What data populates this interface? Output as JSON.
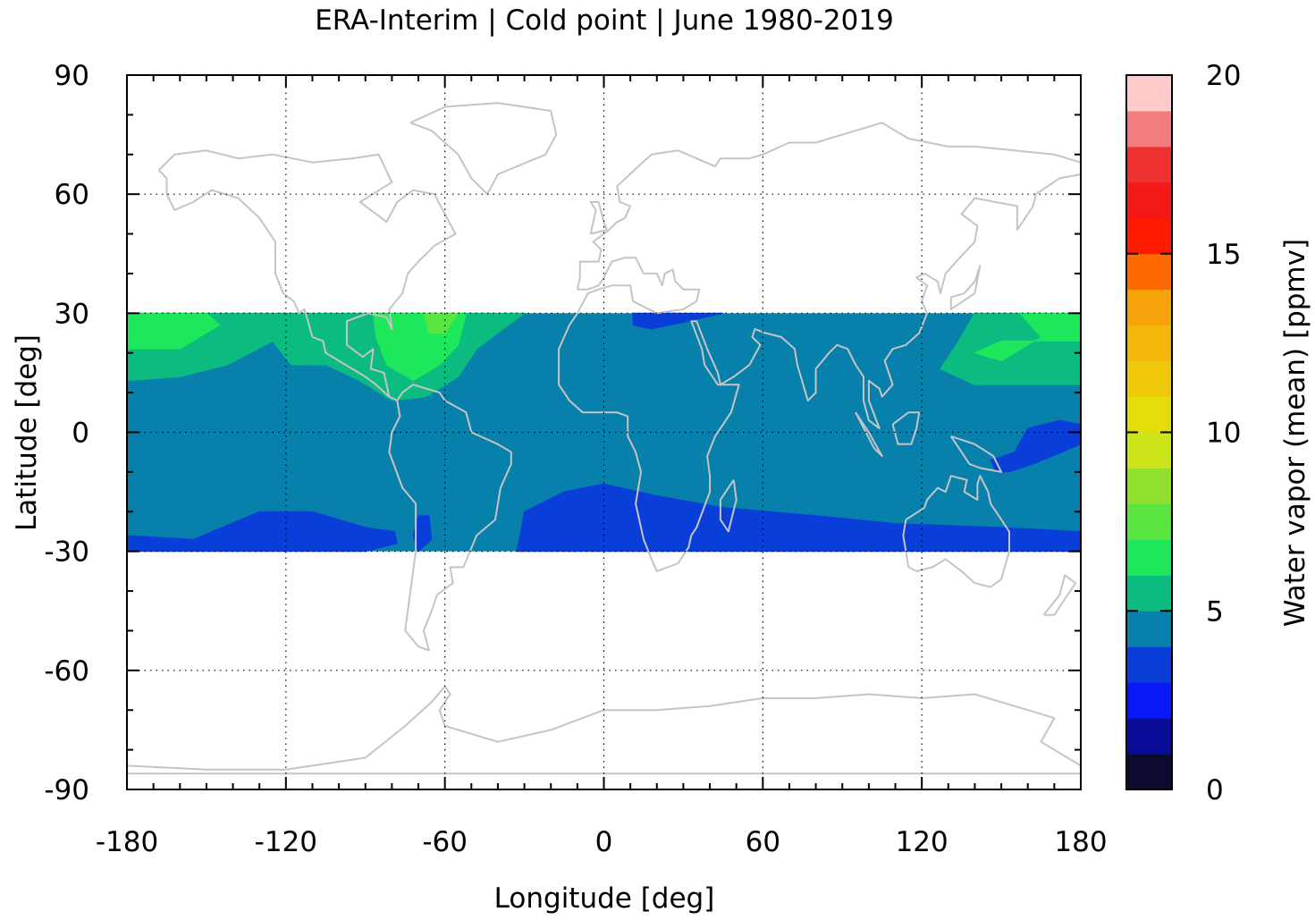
{
  "chart_data": {
    "type": "heatmap",
    "title": "ERA-Interim | Cold point | June 1980-2019",
    "xlabel": "Longitude [deg]",
    "ylabel": "Latitude [deg]",
    "xlim": [
      -180,
      180
    ],
    "ylim": [
      -90,
      90
    ],
    "x_ticks": [
      -180,
      -120,
      -60,
      0,
      60,
      120,
      180
    ],
    "y_ticks": [
      90,
      60,
      30,
      0,
      -30,
      -60,
      -90
    ],
    "x_tick_labels": [
      "-180",
      "-120",
      "-60",
      "0",
      "60",
      "120",
      "180"
    ],
    "y_tick_labels": [
      "90",
      "60",
      "30",
      "0",
      "-30",
      "-60",
      "-90"
    ],
    "grid": "dotted at major ticks",
    "data_lat_range": [
      -30,
      30
    ],
    "colorbar": {
      "label": "Water vapor (mean) [ppmv]",
      "range": [
        0,
        20
      ],
      "step": 1,
      "ticks": [
        0,
        5,
        10,
        15,
        20
      ],
      "tick_labels": [
        "0",
        "5",
        "10",
        "15",
        "20"
      ],
      "colors": [
        "#0b0c30",
        "#0a0c9a",
        "#0818f6",
        "#0a3ed8",
        "#0880ac",
        "#0cbb80",
        "#1de85c",
        "#5ae440",
        "#92e02e",
        "#cce41a",
        "#e6dc0a",
        "#f0c80a",
        "#f4b60a",
        "#f7a208",
        "#ff6a00",
        "#ff1a00",
        "#f41818",
        "#ee3232",
        "#f47c7c",
        "#ffcaca"
      ]
    },
    "fields": {
      "background_level": 4,
      "regions": [
        {
          "level": 5,
          "desc": "subtropical north band",
          "points": [
            [
              -180,
              30
            ],
            [
              -60,
              30
            ],
            [
              -30,
              30
            ],
            [
              -48,
              21
            ],
            [
              -55,
              14
            ],
            [
              -67,
              9
            ],
            [
              -80,
              8
            ],
            [
              -92,
              13
            ],
            [
              -105,
              17
            ],
            [
              -118,
              17
            ],
            [
              -125,
              23
            ],
            [
              -142,
              17
            ],
            [
              -160,
              14
            ],
            [
              -180,
              13
            ]
          ]
        },
        {
          "level": 6,
          "desc": "Caribbean",
          "points": [
            [
              -87,
              30
            ],
            [
              -52,
              30
            ],
            [
              -55,
              22
            ],
            [
              -62,
              17
            ],
            [
              -72,
              13
            ],
            [
              -82,
              17
            ],
            [
              -86,
              24
            ]
          ]
        },
        {
          "level": 7,
          "desc": "Gulf of Mexico",
          "points": [
            [
              -68,
              30
            ],
            [
              -55,
              30
            ],
            [
              -60,
              25
            ],
            [
              -66,
              25
            ]
          ]
        },
        {
          "level": 6,
          "desc": "north-east Pacific",
          "points": [
            [
              -180,
              30
            ],
            [
              -150,
              30
            ],
            [
              -145,
              27
            ],
            [
              -160,
              21
            ],
            [
              -180,
              21
            ]
          ]
        },
        {
          "level": 5,
          "desc": "western Pacific band",
          "points": [
            [
              180,
              30
            ],
            [
              140,
              30
            ],
            [
              133,
              22
            ],
            [
              127,
              16
            ],
            [
              140,
              12
            ],
            [
              180,
              12
            ]
          ]
        },
        {
          "level": 6,
          "desc": "western Pacific core",
          "points": [
            [
              180,
              30
            ],
            [
              157,
              30
            ],
            [
              165,
              24
            ],
            [
              150,
              18
            ],
            [
              140,
              20
            ],
            [
              150,
              23
            ],
            [
              180,
              23
            ]
          ]
        },
        {
          "level": 3,
          "desc": "eastern Mediterranean",
          "points": [
            [
              11,
              30
            ],
            [
              45,
              30
            ],
            [
              32,
              28
            ],
            [
              18,
              26
            ],
            [
              11,
              27
            ]
          ]
        },
        {
          "level": 3,
          "desc": "south Atlantic and Indian ocean",
          "points": [
            [
              -32,
              -27
            ],
            [
              -30,
              -20
            ],
            [
              -15,
              -15
            ],
            [
              0,
              -13
            ],
            [
              20,
              -16
            ],
            [
              45,
              -19
            ],
            [
              80,
              -21
            ],
            [
              110,
              -23
            ],
            [
              150,
              -24
            ],
            [
              180,
              -25
            ],
            [
              180,
              -30
            ],
            [
              -33,
              -30
            ]
          ]
        },
        {
          "level": 3,
          "desc": "south-east Pacific",
          "points": [
            [
              -180,
              -26
            ],
            [
              -155,
              -27
            ],
            [
              -130,
              -20
            ],
            [
              -110,
              -20
            ],
            [
              -90,
              -24
            ],
            [
              -79,
              -25
            ],
            [
              -78,
              -28
            ],
            [
              -90,
              -30
            ],
            [
              -180,
              -30
            ]
          ]
        },
        {
          "level": 3,
          "desc": "Pacific warm pool",
          "points": [
            [
              146,
              -7
            ],
            [
              155,
              -5
            ],
            [
              160,
              1
            ],
            [
              172,
              3
            ],
            [
              180,
              2
            ],
            [
              180,
              -3
            ],
            [
              173,
              -5
            ],
            [
              162,
              -8
            ],
            [
              153,
              -10
            ],
            [
              148,
              -10
            ]
          ]
        },
        {
          "level": 3,
          "desc": "Andes patch",
          "points": [
            [
              -70,
              -21
            ],
            [
              -66,
              -21
            ],
            [
              -65,
              -27
            ],
            [
              -70,
              -30
            ],
            [
              -72,
              -26
            ]
          ]
        }
      ]
    }
  }
}
